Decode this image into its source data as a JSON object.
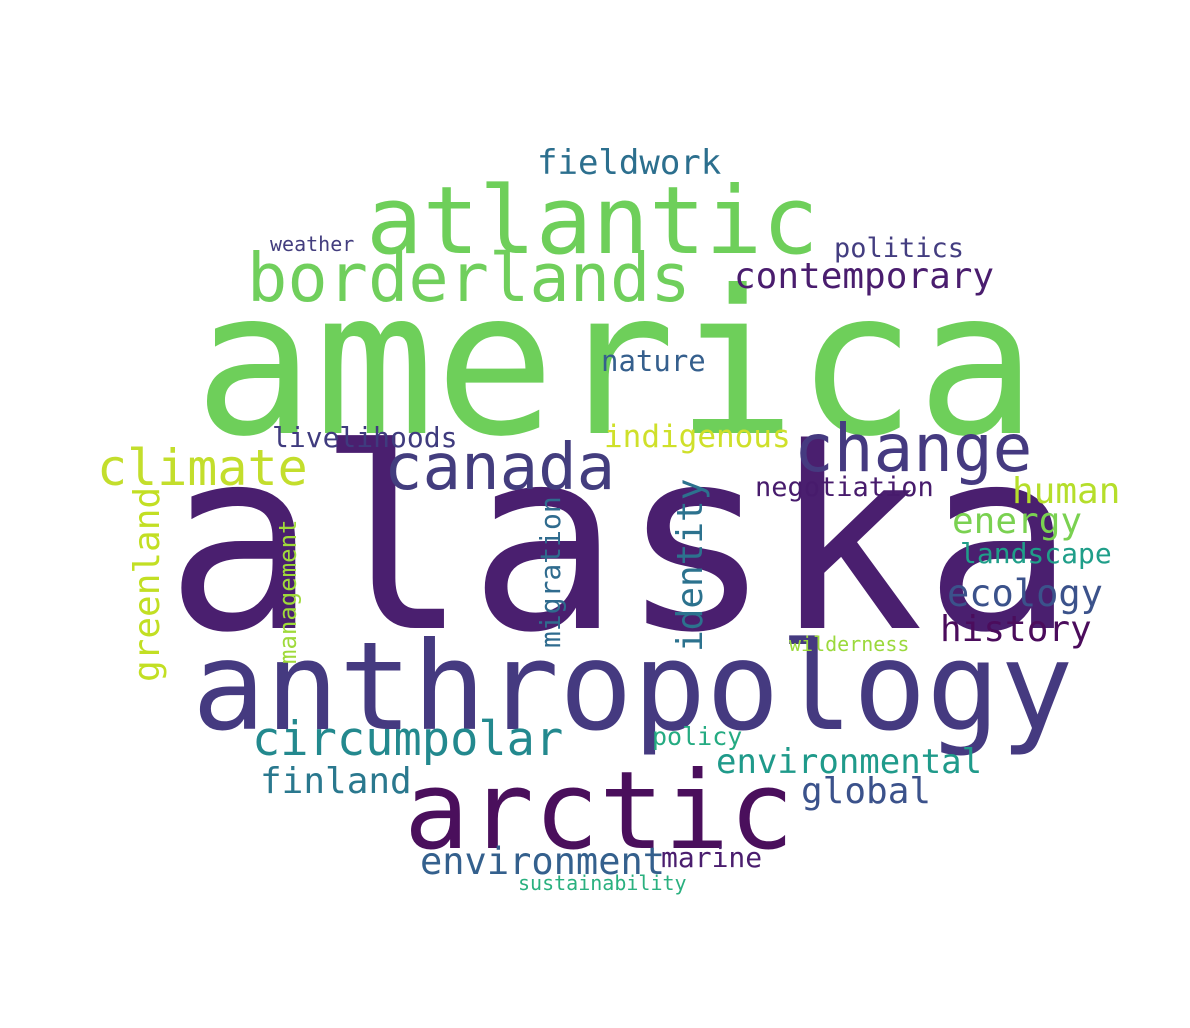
{
  "words": {
    "alaska": {
      "text": "alaska",
      "color": "#4a1f6f"
    },
    "america": {
      "text": "america",
      "color": "#6ecf5a"
    },
    "anthropology": {
      "text": "anthropology",
      "color": "#453a80"
    },
    "arctic": {
      "text": "arctic",
      "color": "#4a0f5c"
    },
    "atlantic": {
      "text": "atlantic",
      "color": "#6ecf5a"
    },
    "borderlands": {
      "text": "borderlands",
      "color": "#70cf5c"
    },
    "change": {
      "text": "change",
      "color": "#453a80"
    },
    "canada": {
      "text": "canada",
      "color": "#433d7e"
    },
    "climate": {
      "text": "climate",
      "color": "#c3de2c"
    },
    "circumpolar": {
      "text": "circumpolar",
      "color": "#23898e"
    },
    "contemporary": {
      "text": "contemporary",
      "color": "#4a1d6e"
    },
    "fieldwork": {
      "text": "fieldwork",
      "color": "#2c6f8e"
    },
    "finland": {
      "text": "finland",
      "color": "#2a788e"
    },
    "environment": {
      "text": "environment",
      "color": "#34608d"
    },
    "environmental": {
      "text": "environmental",
      "color": "#1f9a8a"
    },
    "global": {
      "text": "global",
      "color": "#3b528b"
    },
    "ecology": {
      "text": "ecology",
      "color": "#3b528b"
    },
    "history": {
      "text": "history",
      "color": "#4b0c5c"
    },
    "human": {
      "text": "human",
      "color": "#b5de2b"
    },
    "energy": {
      "text": "energy",
      "color": "#7ad151"
    },
    "landscape": {
      "text": "landscape",
      "color": "#1f9e89"
    },
    "negotiation": {
      "text": "negotiation",
      "color": "#471b6c"
    },
    "indigenous": {
      "text": "indigenous",
      "color": "#cfe02a"
    },
    "livelihoods": {
      "text": "livelihoods",
      "color": "#3f3b7e"
    },
    "nature": {
      "text": "nature",
      "color": "#355f8d"
    },
    "politics": {
      "text": "politics",
      "color": "#433d80"
    },
    "weather": {
      "text": "weather",
      "color": "#433d7e"
    },
    "policy": {
      "text": "policy",
      "color": "#25ab82"
    },
    "marine": {
      "text": "marine",
      "color": "#4a1d6e"
    },
    "sustainability": {
      "text": "sustainability",
      "color": "#2ab07f"
    },
    "wilderness": {
      "text": "wilderness",
      "color": "#9bd93c"
    },
    "greenland": {
      "text": "greenland",
      "color": "#c2df23"
    },
    "management": {
      "text": "management",
      "color": "#9fda3a"
    },
    "migration": {
      "text": "migration",
      "color": "#2f6b8e"
    },
    "identity": {
      "text": "identity",
      "color": "#2c728e"
    }
  }
}
